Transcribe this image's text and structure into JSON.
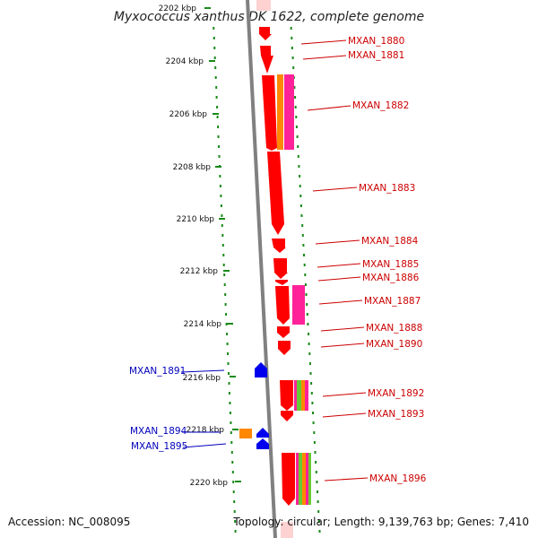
{
  "title": "Myxococcus xanthus DK 1622, complete genome",
  "footer": {
    "accession": "Accession: NC_008095",
    "topology": "Topology: circular; Length: 9,139,763 bp; Genes: 7,410"
  },
  "ticks": [
    "2202 kbp",
    "2204 kbp",
    "2206 kbp",
    "2208 kbp",
    "2210 kbp",
    "2212 kbp",
    "2214 kbp",
    "2216 kbp",
    "2218 kbp",
    "2220 kbp"
  ],
  "genes_forward": [
    "MXAN_1880",
    "MXAN_1881",
    "MXAN_1882",
    "MXAN_1883",
    "MXAN_1884",
    "MXAN_1885",
    "MXAN_1886",
    "MXAN_1887",
    "MXAN_1888",
    "MXAN_1890",
    "MXAN_1892",
    "MXAN_1893",
    "MXAN_1896"
  ],
  "genes_reverse": [
    "MXAN_1891",
    "MXAN_1894",
    "MXAN_1895"
  ],
  "colors": {
    "forward_gene": "#ff0000",
    "reverse_gene": "#0000ee",
    "feature_orange": "#ff8800",
    "feature_magenta": "#ff2299",
    "feature_green": "#66cc33",
    "backbone": "#808080",
    "tick_green": "#1a8a1a",
    "forward_label": "#cc0000",
    "reverse_label": "#0000bb"
  }
}
